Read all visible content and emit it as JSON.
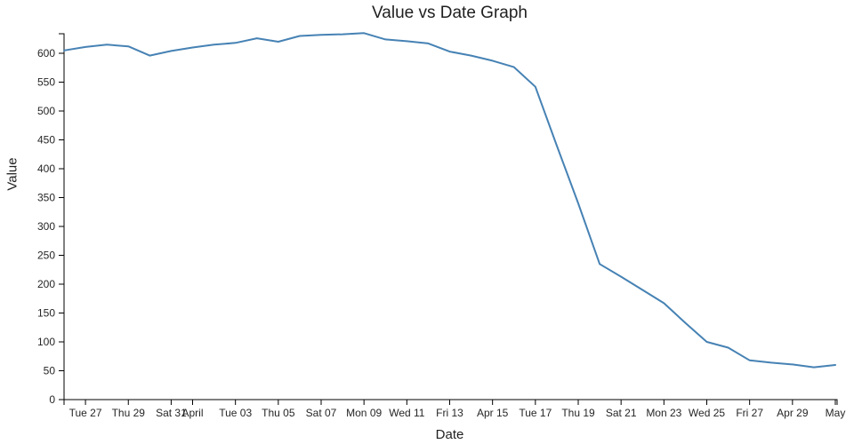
{
  "page": {
    "background": "#ffffff"
  },
  "chart_data": {
    "type": "line",
    "title": "Value vs Date Graph",
    "xlabel": "Date",
    "ylabel": "Value",
    "legend": null,
    "grid": false,
    "line_color": "#4682b4",
    "axis_color": "#000000",
    "tick_label_color": "#262626",
    "xlim_days": [
      0,
      36
    ],
    "ylim": [
      0,
      634
    ],
    "x": [
      "Mar 26",
      "Mar 27",
      "Mar 28",
      "Mar 29",
      "Mar 30",
      "Mar 31",
      "Apr 01",
      "Apr 02",
      "Apr 03",
      "Apr 04",
      "Apr 05",
      "Apr 06",
      "Apr 07",
      "Apr 08",
      "Apr 09",
      "Apr 10",
      "Apr 11",
      "Apr 12",
      "Apr 13",
      "Apr 14",
      "Apr 15",
      "Apr 16",
      "Apr 17",
      "Apr 18",
      "Apr 19",
      "Apr 20",
      "Apr 21",
      "Apr 22",
      "Apr 23",
      "Apr 24",
      "Apr 25",
      "Apr 26",
      "Apr 27",
      "Apr 28",
      "Apr 29",
      "Apr 30",
      "May 01"
    ],
    "values": [
      605,
      611,
      615,
      612,
      596,
      604,
      610,
      615,
      618,
      626,
      620,
      630,
      632,
      633,
      635,
      624,
      621,
      617,
      603,
      596,
      587,
      576,
      542,
      440,
      340,
      235,
      213,
      190,
      167,
      133,
      100,
      90,
      68,
      64,
      61,
      56,
      60
    ],
    "x_ticks": [
      {
        "day": 1,
        "label": "Tue 27"
      },
      {
        "day": 3,
        "label": "Thu 29"
      },
      {
        "day": 5,
        "label": "Sat 31"
      },
      {
        "day": 6,
        "label": "April"
      },
      {
        "day": 8,
        "label": "Tue 03"
      },
      {
        "day": 10,
        "label": "Thu 05"
      },
      {
        "day": 12,
        "label": "Sat 07"
      },
      {
        "day": 14,
        "label": "Mon 09"
      },
      {
        "day": 16,
        "label": "Wed 11"
      },
      {
        "day": 18,
        "label": "Fri 13"
      },
      {
        "day": 20,
        "label": "Apr 15"
      },
      {
        "day": 22,
        "label": "Tue 17"
      },
      {
        "day": 24,
        "label": "Thu 19"
      },
      {
        "day": 26,
        "label": "Sat 21"
      },
      {
        "day": 28,
        "label": "Mon 23"
      },
      {
        "day": 30,
        "label": "Wed 25"
      },
      {
        "day": 32,
        "label": "Fri 27"
      },
      {
        "day": 34,
        "label": "Apr 29"
      },
      {
        "day": 36,
        "label": "May"
      }
    ],
    "y_ticks": [
      0,
      50,
      100,
      150,
      200,
      250,
      300,
      350,
      400,
      450,
      500,
      550,
      600
    ]
  }
}
